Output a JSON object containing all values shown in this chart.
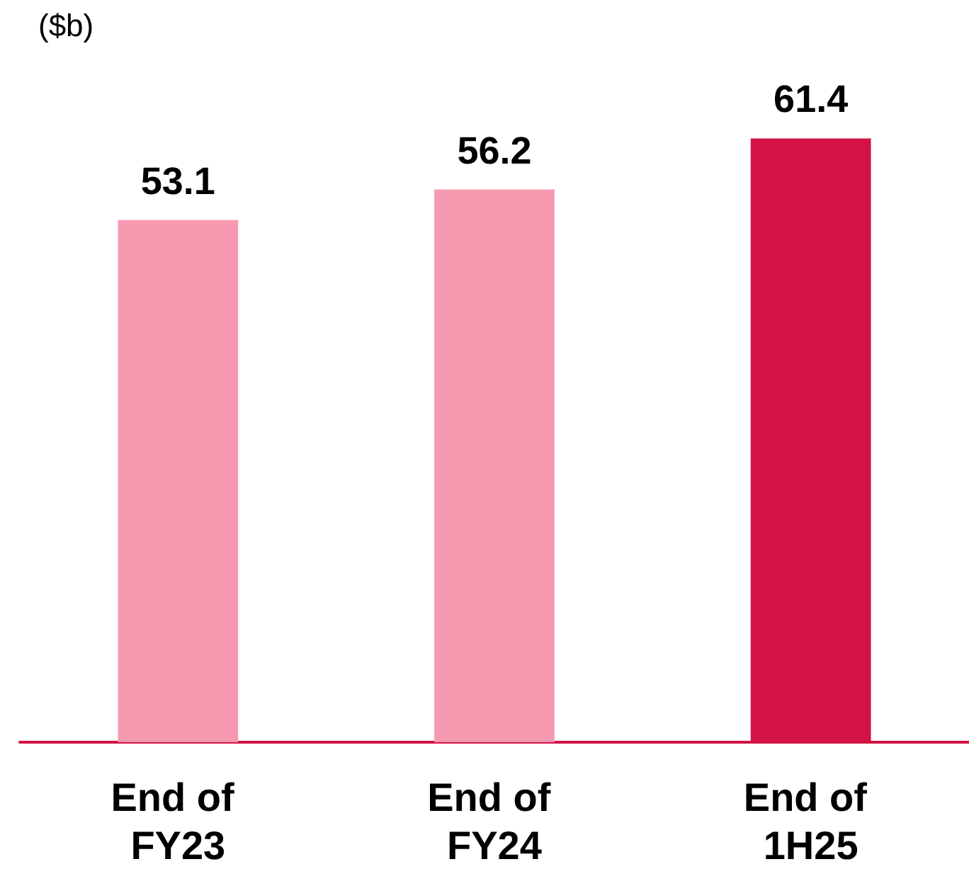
{
  "chart_data": {
    "type": "bar",
    "ylabel": "($b)",
    "categories": [
      "End of FY23",
      "End of FY24",
      "End of 1H25"
    ],
    "values": [
      53.1,
      56.2,
      61.4
    ],
    "colors": [
      "#f599b0",
      "#f599b0",
      "#d31245"
    ],
    "tick_labels": "x",
    "data_labels": true
  }
}
